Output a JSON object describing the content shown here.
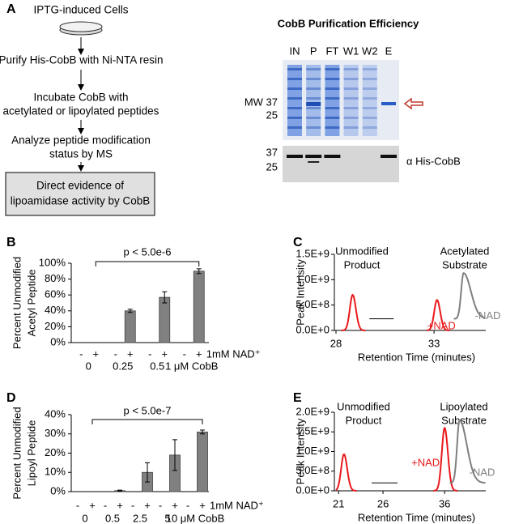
{
  "panel_labels": [
    "A",
    "B",
    "C",
    "D",
    "E"
  ],
  "workflow": {
    "steps": [
      [
        "IPTG-induced Cells"
      ],
      [
        "Purify His-CobB with Ni-NTA resin"
      ],
      [
        "Incubate CobB with",
        "acetylated or lipoylated peptides"
      ],
      [
        "Analyze peptide modification",
        "status by MS"
      ]
    ],
    "result": [
      "Direct evidence of",
      "lipoamidase activity by CobB"
    ]
  },
  "gel": {
    "title": "CobB Purification Efficiency",
    "lanes": [
      "IN",
      "P",
      "FT",
      "W1",
      "W2",
      "E"
    ],
    "coomassie_markers": [
      "MW 37",
      "25"
    ],
    "western_markers": [
      "37",
      "25"
    ],
    "western_label": "α His-CobB"
  },
  "chart_data": [
    {
      "type": "bar",
      "y_label": [
        "Percent Unmodified",
        "Acetyl Peptide"
      ],
      "categories": [
        "-",
        "+",
        "-",
        "+",
        "-",
        "+",
        "-",
        "+"
      ],
      "groups": [
        "0",
        "0.25",
        "0.5",
        "1 μM CobB"
      ],
      "category_row_label": "1mM NAD⁺",
      "values": [
        0,
        0,
        0,
        40,
        0,
        57,
        0,
        90
      ],
      "errors": [
        null,
        null,
        null,
        2,
        null,
        7,
        null,
        3
      ],
      "color": "#808080",
      "ylim": [
        0,
        100
      ],
      "yticks": [
        {
          "value": 0,
          "label": "0%"
        },
        {
          "value": 20,
          "label": "20%"
        },
        {
          "value": 40,
          "label": "40%"
        },
        {
          "value": 60,
          "label": "60%"
        },
        {
          "value": 80,
          "label": "80%"
        },
        {
          "value": 100,
          "label": "100%"
        }
      ],
      "annotation": "p < 5.0e-6"
    },
    {
      "type": "chromatogram",
      "titles": [
        [
          "Unmodified",
          "Product"
        ],
        [
          "Acetylated",
          "Substrate"
        ]
      ],
      "y_label": "Peak Intensity",
      "x_label": "Retention Time (minutes)",
      "ylim": [
        0,
        1500000000
      ],
      "yticks": [
        {
          "value": 0,
          "label": "0.0E+0"
        },
        {
          "value": 500000000,
          "label": "5.0E+8"
        },
        {
          "value": 1000000000,
          "label": "1.0E+9"
        },
        {
          "value": 1500000000,
          "label": "1.5E+9"
        }
      ],
      "x_segments": [
        {
          "xlim": [
            28,
            32
          ],
          "xticks": [
            28
          ]
        },
        {
          "xlim": [
            32.5,
            36.5
          ],
          "xticks": [
            33
          ]
        }
      ],
      "series": [
        {
          "name": "+NAD",
          "color": "#e8191b",
          "x": [
            29.1,
            33.2
          ],
          "values": [
            700000000,
            600000000
          ]
        },
        {
          "name": "-NAD",
          "color": "#7f7f7f",
          "x": [
            35.0
          ],
          "values": [
            1130000000
          ],
          "baseline": 230000000
        }
      ]
    },
    {
      "type": "bar",
      "y_label": [
        "Percent Unmodified",
        "Lipoyl Peptide"
      ],
      "categories": [
        "-",
        "+",
        "-",
        "+",
        "-",
        "+",
        "-",
        "+",
        "-",
        "+"
      ],
      "groups": [
        "0",
        "0.5",
        "2.5",
        "5",
        "10 μM CobB"
      ],
      "category_row_label": "1mM NAD⁺",
      "values": [
        0,
        0,
        0,
        0.5,
        0,
        10,
        0,
        19,
        0,
        31
      ],
      "errors": [
        null,
        null,
        null,
        0.3,
        null,
        5,
        null,
        8,
        null,
        1
      ],
      "color": "#808080",
      "ylim": [
        0,
        40
      ],
      "yticks": [
        {
          "value": 0,
          "label": "0%"
        },
        {
          "value": 10,
          "label": "10%"
        },
        {
          "value": 20,
          "label": "20%"
        },
        {
          "value": 30,
          "label": "30%"
        },
        {
          "value": 40,
          "label": "40%"
        }
      ],
      "annotation": "p < 5.0e-7"
    },
    {
      "type": "chromatogram",
      "titles": [
        [
          "Unmodified",
          "Product"
        ],
        [
          "Lipoylated",
          "Substrate"
        ]
      ],
      "y_label": "Peak Intensity",
      "x_label": "Retention Time (minutes)",
      "ylim": [
        0,
        2000000000
      ],
      "yticks": [
        {
          "value": 0,
          "label": "0.0E+0"
        },
        {
          "value": 500000000,
          "label": "5.0E+8"
        },
        {
          "value": 1000000000,
          "label": "1.0E+9"
        },
        {
          "value": 1500000000,
          "label": "1.5E+9"
        },
        {
          "value": 2000000000,
          "label": "2.0E+9"
        }
      ],
      "x_segments": [
        {
          "xlim": [
            20.7,
            28
          ],
          "xticks": [
            21,
            26
          ]
        },
        {
          "xlim": [
            33.3,
            40.7
          ],
          "xticks": [
            36
          ]
        }
      ],
      "series": [
        {
          "name": "+NAD",
          "color": "#e8191b",
          "x": [
            21.6,
            36.0
          ],
          "values": [
            930000000,
            1600000000
          ]
        },
        {
          "name": "-NAD",
          "color": "#7f7f7f",
          "x": [
            37.7
          ],
          "values": [
            1800000000
          ],
          "baseline": 200000000
        }
      ]
    }
  ]
}
